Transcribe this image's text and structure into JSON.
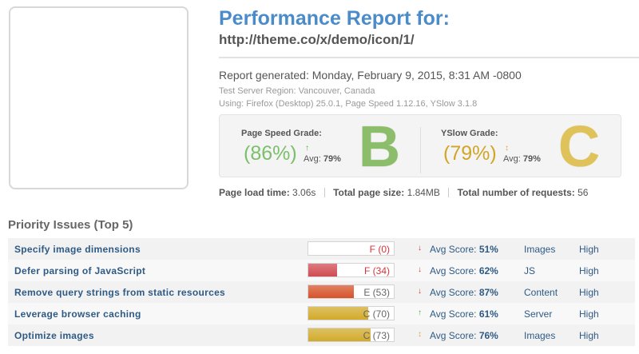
{
  "header": {
    "title": "Performance Report for:",
    "url": "http://theme.co/x/demo/icon/1/",
    "generated": "Report generated: Monday, February 9, 2015, 8:31 AM -0800",
    "region": "Test Server Region: Vancouver, Canada",
    "using": "Using: Firefox (Desktop) 25.0.1, Page Speed 1.12.16, YSlow 3.1.8"
  },
  "grades": {
    "pagespeed": {
      "label": "Page Speed Grade:",
      "percent": "(86%)",
      "trend_icon": "↑",
      "avg_label": "Avg:",
      "avg_value": "79%",
      "letter": "B",
      "color": "#7bbf6a"
    },
    "yslow": {
      "label": "YSlow Grade:",
      "percent": "(79%)",
      "trend_icon": "↕",
      "avg_label": "Avg:",
      "avg_value": "79%",
      "letter": "C",
      "color": "#d2a528"
    }
  },
  "stats": {
    "load_label": "Page load time:",
    "load_value": "3.06s",
    "size_label": "Total page size:",
    "size_value": "1.84MB",
    "requests_label": "Total number of requests:",
    "requests_value": "56"
  },
  "issues": {
    "title": "Priority Issues (Top 5)",
    "rows": [
      {
        "name": "Specify image dimensions",
        "grade": "F (0)",
        "fill_pct": 0,
        "fill_color": "#d04a52",
        "grade_color": "#d9323a",
        "trend_icon": "↓",
        "trend_color": "#d9323a",
        "avg_label": "Avg Score:",
        "avg_value": "51%",
        "type": "Images",
        "priority": "High"
      },
      {
        "name": "Defer parsing of JavaScript",
        "grade": "F (34)",
        "fill_pct": 34,
        "fill_color": "#d04a52",
        "grade_color": "#d9323a",
        "trend_icon": "↓",
        "trend_color": "#d9323a",
        "avg_label": "Avg Score:",
        "avg_value": "62%",
        "type": "JS",
        "priority": "High"
      },
      {
        "name": "Remove query strings from static resources",
        "grade": "E (53)",
        "fill_pct": 53,
        "fill_color": "#d6532a",
        "grade_color": "#666666",
        "trend_icon": "↓",
        "trend_color": "#d9323a",
        "avg_label": "Avg Score:",
        "avg_value": "87%",
        "type": "Content",
        "priority": "High"
      },
      {
        "name": "Leverage browser caching",
        "grade": "C (70)",
        "fill_pct": 70,
        "fill_color": "#d2aa2a",
        "grade_color": "#666666",
        "trend_icon": "↑",
        "trend_color": "#57a844",
        "avg_label": "Avg Score:",
        "avg_value": "61%",
        "type": "Server",
        "priority": "High"
      },
      {
        "name": "Optimize images",
        "grade": "C (73)",
        "fill_pct": 73,
        "fill_color": "#d2aa2a",
        "grade_color": "#666666",
        "trend_icon": "↕",
        "trend_color": "#e8a04b",
        "avg_label": "Avg Score:",
        "avg_value": "76%",
        "type": "Images",
        "priority": "High"
      }
    ]
  }
}
